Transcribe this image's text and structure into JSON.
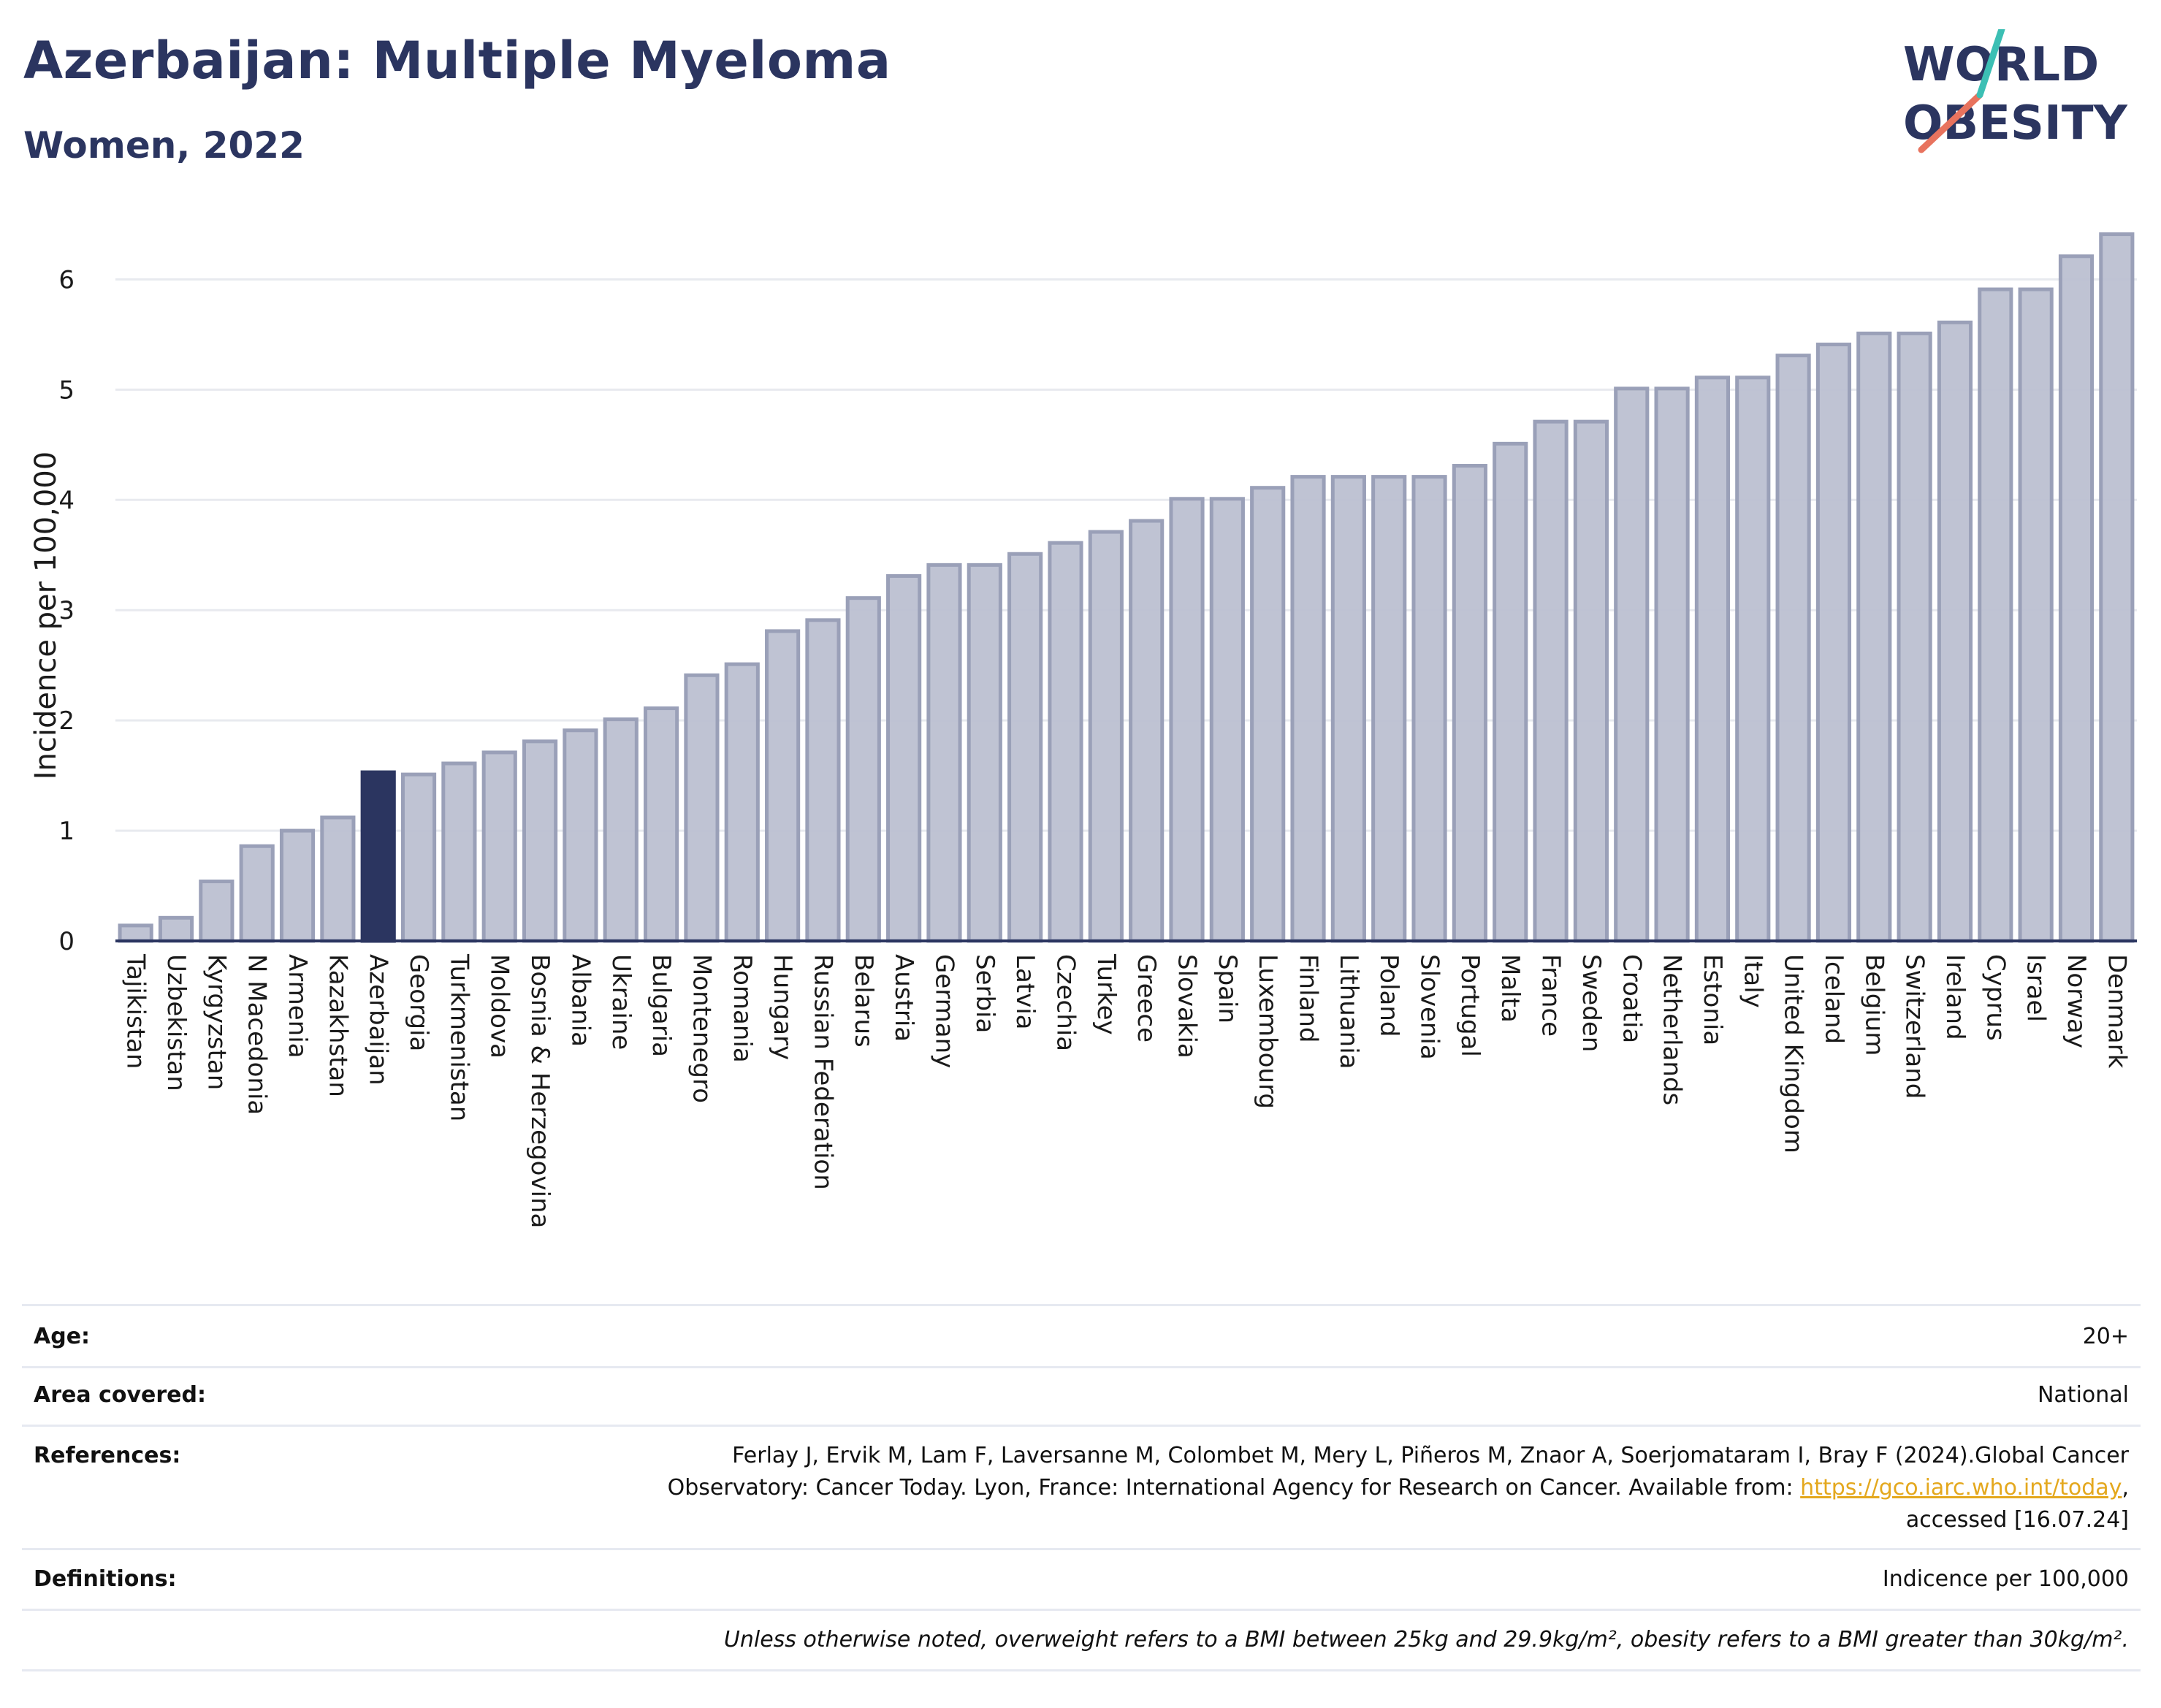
{
  "header": {
    "title": "Azerbaijan: Multiple Myeloma",
    "subtitle": "Women, 2022"
  },
  "logo": {
    "line1": "WORLD",
    "line2": "OBESITY"
  },
  "colors": {
    "bar": "#bcc0d1",
    "bar_stroke": "#9aa0b8",
    "highlight": "#2b3560",
    "grid": "#e8eaef",
    "text": "#1a1a1a",
    "link": "#e4a81e"
  },
  "chart_data": {
    "type": "bar",
    "ylabel": "Incidence per 100,000",
    "ylim": [
      0,
      6.5
    ],
    "yticks": [
      0,
      1,
      2,
      3,
      4,
      5,
      6
    ],
    "grid": true,
    "highlight": "Azerbaijan",
    "categories": [
      "Tajikistan",
      "Uzbekistan",
      "Kyrgyzstan",
      "N Macedonia",
      "Armenia",
      "Kazakhstan",
      "Azerbaijan",
      "Georgia",
      "Turkmenistan",
      "Moldova",
      "Bosnia & Herzegovina",
      "Albania",
      "Ukraine",
      "Bulgaria",
      "Montenegro",
      "Romania",
      "Hungary",
      "Russian Federation",
      "Belarus",
      "Austria",
      "Germany",
      "Serbia",
      "Latvia",
      "Czechia",
      "Turkey",
      "Greece",
      "Slovakia",
      "Spain",
      "Luxembourg",
      "Finland",
      "Lithuania",
      "Poland",
      "Slovenia",
      "Portugal",
      "Malta",
      "France",
      "Sweden",
      "Croatia",
      "Netherlands",
      "Estonia",
      "Italy",
      "United Kingdom",
      "Iceland",
      "Belgium",
      "Switzerland",
      "Ireland",
      "Cyprus",
      "Israel",
      "Norway",
      "Denmark"
    ],
    "values": [
      0.14,
      0.21,
      0.54,
      0.86,
      1.0,
      1.12,
      1.53,
      1.51,
      1.61,
      1.71,
      1.81,
      1.91,
      2.01,
      2.11,
      2.41,
      2.51,
      2.81,
      2.91,
      3.11,
      3.31,
      3.41,
      3.41,
      3.51,
      3.61,
      3.71,
      3.81,
      4.01,
      4.01,
      4.11,
      4.21,
      4.21,
      4.21,
      4.21,
      4.31,
      4.51,
      4.71,
      4.71,
      5.01,
      5.01,
      5.11,
      5.11,
      5.31,
      5.41,
      5.51,
      5.51,
      5.61,
      5.91,
      5.91,
      6.21,
      6.41
    ]
  },
  "meta": {
    "age_label": "Age:",
    "age_value": "20+",
    "area_label": "Area covered:",
    "area_value": "National",
    "refs_label": "References:",
    "refs_line1": "Ferlay J, Ervik M, Lam F, Laversanne M, Colombet M, Mery L, Piñeros M, Znaor A, Soerjomataram I, Bray F (2024).Global Cancer",
    "refs_line2": "Observatory: Cancer Today. Lyon, France: International Agency for Research on Cancer. Available from: ",
    "refs_link": "https://gco.iarc.who.int/today",
    "refs_line2_end": ",",
    "refs_line3": "accessed [16.07.24]",
    "defs_label": "Definitions:",
    "defs_value": "Indicence per 100,000",
    "note": "Unless otherwise noted, overweight refers to a BMI between 25kg and 29.9kg/m², obesity refers to a BMI greater than 30kg/m²."
  }
}
